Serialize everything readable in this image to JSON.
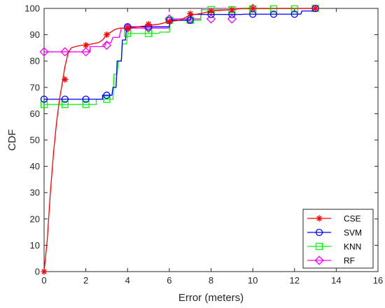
{
  "chart_data": {
    "type": "line",
    "xlabel": "Error (meters)",
    "ylabel": "CDF",
    "xlim": [
      0,
      16
    ],
    "ylim": [
      0,
      100
    ],
    "x_ticks": [
      0,
      2,
      4,
      6,
      8,
      10,
      12,
      14,
      16
    ],
    "y_ticks": [
      0,
      10,
      20,
      30,
      40,
      50,
      60,
      70,
      80,
      90,
      100
    ],
    "grid": false,
    "legend_position": "bottom-right",
    "series": [
      {
        "name": "CSE",
        "color": "#ff0000",
        "marker": "asterisk",
        "x": [
          0,
          0.15,
          0.3,
          0.45,
          0.6,
          0.75,
          0.9,
          1.0,
          1.15,
          1.3,
          1.5,
          1.8,
          2.0,
          2.3,
          2.6,
          2.8,
          3.0,
          3.2,
          3.4,
          3.6,
          3.8,
          4.0,
          4.5,
          5.0,
          5.5,
          6.0,
          6.5,
          7.0,
          7.5,
          8.0,
          9.0,
          9.5,
          10.0,
          10.5,
          13.0
        ],
        "y": [
          0,
          12,
          30,
          45,
          57,
          66,
          73,
          78,
          83,
          85,
          85.5,
          86,
          86,
          86.5,
          87,
          88,
          90,
          91,
          92,
          92.5,
          92.5,
          92.5,
          93,
          93.5,
          94,
          95,
          95.5,
          97.5,
          98,
          99,
          99.5,
          100,
          100,
          100,
          100
        ],
        "marker_x": [
          0,
          1,
          2,
          3,
          4,
          5,
          6,
          7,
          8,
          9,
          10,
          13
        ],
        "marker_y": [
          0,
          73,
          86,
          90,
          92.5,
          94,
          95,
          98,
          99,
          99.5,
          100,
          100
        ]
      },
      {
        "name": "SVM",
        "color": "#0000ff",
        "marker": "circle",
        "x": [
          0,
          2.8,
          2.8,
          3.25,
          3.3,
          3.45,
          3.5,
          3.7,
          3.75,
          3.9,
          3.95,
          6.0,
          6.05,
          7.0,
          7.05,
          9.5,
          9.55,
          12.3,
          12.35,
          12.9,
          12.95,
          13.0
        ],
        "y": [
          65.5,
          65.5,
          67,
          67,
          70,
          70,
          80,
          80,
          88,
          88,
          93,
          93,
          95.5,
          95.5,
          97.7,
          97.7,
          97.8,
          97.8,
          99,
          99,
          100,
          100
        ],
        "marker_x": [
          0,
          1,
          2,
          3,
          4,
          5,
          6,
          7,
          8,
          9,
          10,
          11,
          12,
          13
        ],
        "marker_y": [
          65.5,
          65.5,
          65.5,
          67,
          93,
          93,
          95.5,
          95.5,
          97.7,
          97.7,
          97.8,
          97.8,
          97.8,
          100
        ]
      },
      {
        "name": "KNN",
        "color": "#00ff00",
        "marker": "square",
        "x": [
          0,
          2.5,
          2.5,
          3.3,
          3.35,
          3.5,
          3.55,
          3.7,
          3.75,
          3.95,
          4.0,
          5.5,
          5.55,
          6.0,
          6.05,
          7.5,
          7.55,
          9.0,
          9.05,
          13.0
        ],
        "y": [
          63.5,
          63.5,
          65.5,
          65.5,
          75,
          75,
          80,
          80,
          86.5,
          86.5,
          90.5,
          90.5,
          91,
          91,
          95.5,
          95.5,
          99.5,
          99.5,
          99.8,
          100
        ],
        "marker_x": [
          0,
          1,
          2,
          3,
          4,
          5,
          6,
          7,
          8,
          9,
          10,
          11,
          12,
          13
        ],
        "marker_y": [
          63.5,
          63.5,
          63.5,
          65.5,
          90.5,
          90.5,
          95.5,
          95.5,
          99.5,
          99.5,
          99.8,
          99.8,
          99.8,
          100
        ]
      },
      {
        "name": "RF",
        "color": "#ff00ff",
        "marker": "diamond",
        "x": [
          0,
          2.2,
          2.2,
          2.9,
          2.95,
          3.2,
          3.3,
          3.6,
          3.7,
          6.0,
          6.05,
          7.5,
          7.55,
          10.5,
          10.55,
          13.0
        ],
        "y": [
          83.5,
          83.5,
          85.5,
          85.5,
          87,
          87,
          89,
          89,
          92.5,
          92.5,
          96,
          96,
          100,
          100,
          100,
          100
        ],
        "marker_x": [
          0,
          1,
          2,
          3,
          4,
          5,
          6,
          7,
          8,
          9,
          10
        ],
        "marker_y": [
          83.5,
          83.5,
          83.5,
          86,
          92.5,
          92.5,
          96,
          96,
          96,
          96,
          100
        ]
      }
    ]
  }
}
